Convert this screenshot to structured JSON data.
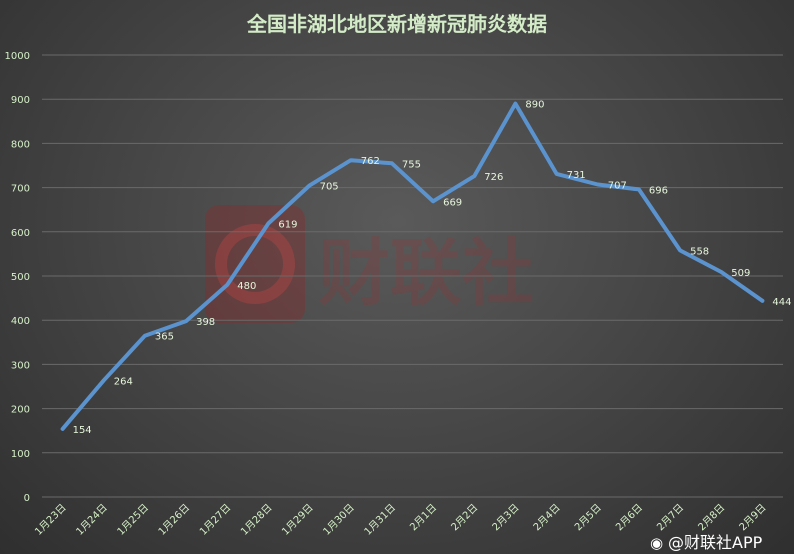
{
  "chart_data": {
    "type": "line",
    "title": "全国非湖北地区新增新冠肺炎数据",
    "categories": [
      "1月23日",
      "1月24日",
      "1月25日",
      "1月26日",
      "1月27日",
      "1月28日",
      "1月29日",
      "1月30日",
      "1月31日",
      "2月1日",
      "2月2日",
      "2月3日",
      "2月4日",
      "2月5日",
      "2月6日",
      "2月7日",
      "2月8日",
      "2月9日"
    ],
    "values": [
      154,
      264,
      365,
      398,
      480,
      619,
      705,
      762,
      755,
      669,
      726,
      890,
      731,
      707,
      696,
      558,
      509,
      444
    ],
    "data_labels": [
      "154",
      "264",
      "365",
      "398",
      "480",
      "619",
      "705",
      "762",
      "755",
      "669",
      "726",
      "890",
      "731",
      "707",
      "696",
      "558",
      "509",
      "444"
    ],
    "y_ticks": [
      "0",
      "100",
      "200",
      "300",
      "400",
      "500",
      "600",
      "700",
      "800",
      "900",
      "1000"
    ],
    "ylim": [
      0,
      1000
    ],
    "grid": true,
    "series_color": "#5b93cf"
  },
  "watermark": {
    "text": "财联社"
  },
  "credit": {
    "text": "@财联社APP"
  }
}
